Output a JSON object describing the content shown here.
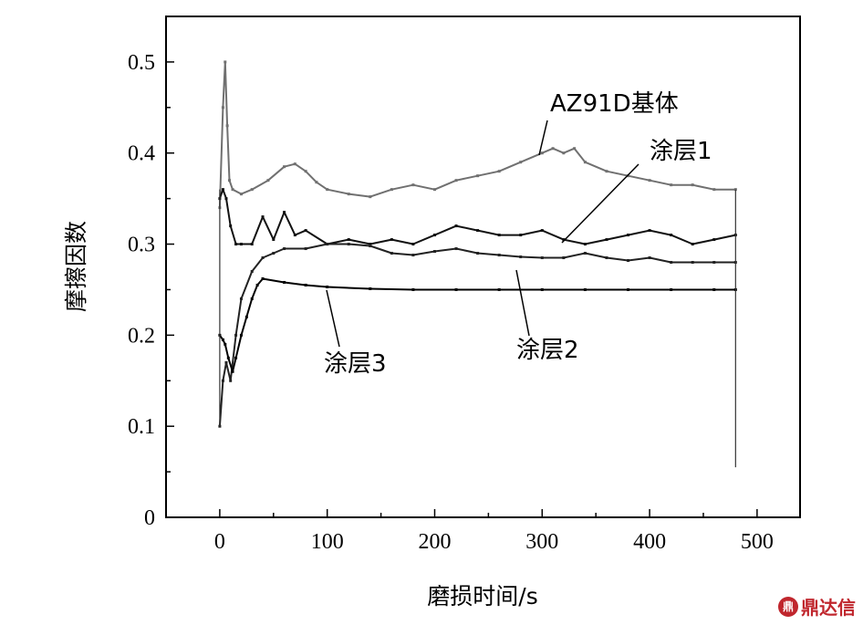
{
  "chart_data": {
    "type": "line",
    "title": "",
    "xlabel": "磨损时间/s",
    "ylabel": "摩擦因数",
    "xlim": [
      -50,
      540
    ],
    "ylim": [
      0,
      0.55
    ],
    "xticks": [
      0,
      100,
      200,
      300,
      400,
      500
    ],
    "yticks": [
      0,
      0.1,
      0.2,
      0.3,
      0.4,
      0.5
    ],
    "xtick_labels": [
      "0",
      "100",
      "200",
      "300",
      "400",
      "500"
    ],
    "ytick_labels": [
      "0",
      "0.1",
      "0.2",
      "0.3",
      "0.4",
      "0.5"
    ],
    "grid": false,
    "legend": "none",
    "series": [
      {
        "name": "AZ91D基体",
        "color": "#707070",
        "x": [
          0,
          3,
          5,
          7,
          9,
          12,
          20,
          30,
          45,
          60,
          70,
          80,
          90,
          100,
          120,
          140,
          160,
          180,
          200,
          220,
          240,
          260,
          280,
          300,
          310,
          320,
          330,
          340,
          360,
          380,
          400,
          420,
          440,
          460,
          480
        ],
        "y": [
          0.34,
          0.45,
          0.5,
          0.43,
          0.37,
          0.36,
          0.355,
          0.36,
          0.37,
          0.385,
          0.388,
          0.38,
          0.368,
          0.36,
          0.355,
          0.352,
          0.36,
          0.365,
          0.36,
          0.37,
          0.375,
          0.38,
          0.39,
          0.4,
          0.405,
          0.4,
          0.405,
          0.39,
          0.38,
          0.375,
          0.37,
          0.365,
          0.365,
          0.36,
          0.36
        ]
      },
      {
        "name": "涂层1",
        "color": "#111111",
        "x": [
          0,
          3,
          6,
          10,
          15,
          20,
          30,
          40,
          50,
          60,
          70,
          80,
          100,
          120,
          140,
          160,
          180,
          200,
          220,
          240,
          260,
          280,
          300,
          320,
          340,
          360,
          380,
          400,
          420,
          440,
          460,
          480
        ],
        "y": [
          0.35,
          0.36,
          0.35,
          0.32,
          0.3,
          0.3,
          0.3,
          0.33,
          0.305,
          0.335,
          0.31,
          0.315,
          0.3,
          0.305,
          0.3,
          0.305,
          0.3,
          0.31,
          0.32,
          0.315,
          0.31,
          0.31,
          0.315,
          0.305,
          0.3,
          0.305,
          0.31,
          0.315,
          0.31,
          0.3,
          0.305,
          0.31
        ]
      },
      {
        "name": "涂层2",
        "color": "#222222",
        "x": [
          0,
          3,
          6,
          10,
          15,
          20,
          30,
          40,
          50,
          60,
          80,
          100,
          120,
          140,
          160,
          180,
          200,
          220,
          240,
          260,
          280,
          300,
          320,
          340,
          360,
          380,
          400,
          420,
          440,
          460,
          480
        ],
        "y": [
          0.1,
          0.15,
          0.17,
          0.15,
          0.2,
          0.24,
          0.27,
          0.285,
          0.29,
          0.295,
          0.295,
          0.3,
          0.3,
          0.298,
          0.29,
          0.288,
          0.292,
          0.295,
          0.29,
          0.288,
          0.286,
          0.285,
          0.285,
          0.29,
          0.285,
          0.282,
          0.285,
          0.28,
          0.28,
          0.28,
          0.28
        ]
      },
      {
        "name": "涂层3",
        "color": "#000000",
        "x": [
          0,
          3,
          5,
          8,
          12,
          15,
          20,
          25,
          30,
          35,
          40,
          60,
          80,
          100,
          140,
          180,
          220,
          260,
          300,
          340,
          380,
          420,
          460,
          480
        ],
        "y": [
          0.2,
          0.195,
          0.19,
          0.175,
          0.16,
          0.175,
          0.2,
          0.22,
          0.24,
          0.255,
          0.262,
          0.258,
          0.255,
          0.253,
          0.251,
          0.25,
          0.25,
          0.25,
          0.25,
          0.25,
          0.25,
          0.25,
          0.25,
          0.25
        ]
      }
    ],
    "annotations": [
      {
        "text": "AZ91D基体",
        "series": 0
      },
      {
        "text": "涂层1",
        "series": 1
      },
      {
        "text": "涂层2",
        "series": 2
      },
      {
        "text": "涂层3",
        "series": 3
      }
    ]
  },
  "watermark": {
    "logo_text": "鼎",
    "text": "鼎达信"
  }
}
